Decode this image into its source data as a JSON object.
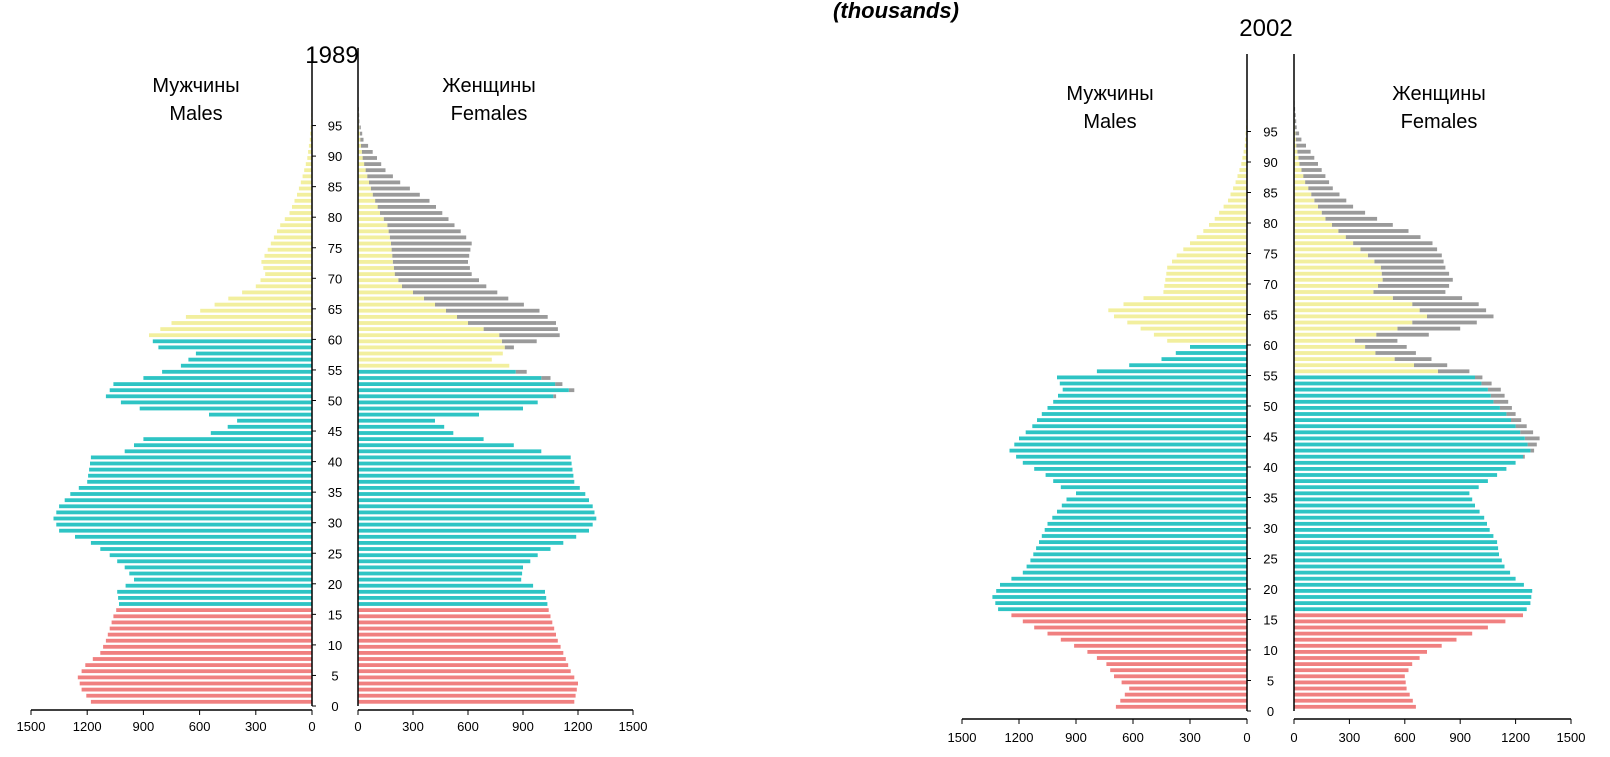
{
  "header": {
    "units": "(thousands)"
  },
  "colors": {
    "children": "#f08080",
    "working": "#2ec4c4",
    "elderly": "#f2ef9e",
    "excess": "#9a9a9a"
  },
  "chart_data": [
    {
      "type": "bar",
      "title": "1989",
      "males_label_ru": "Мужчины",
      "males_label_en": "Males",
      "females_label_ru": "Женщины",
      "females_label_en": "Females",
      "age_ticks": [
        "0",
        "5",
        "10",
        "15",
        "20",
        "25",
        "30",
        "35",
        "40",
        "45",
        "50",
        "55",
        "60",
        "65",
        "70",
        "75",
        "80",
        "85",
        "90",
        "95"
      ],
      "x_ticks_left": [
        "1500",
        "1200",
        "900",
        "600",
        "300",
        "0"
      ],
      "x_ticks_right": [
        "0",
        "300",
        "600",
        "900",
        "1200",
        "1500"
      ],
      "xlim": [
        0,
        1500
      ],
      "age_range": [
        0,
        100
      ],
      "children_upto": 15,
      "working_upto_males": 59,
      "working_upto_females": 54,
      "male_profile": [
        [
          0,
          1180
        ],
        [
          2,
          1230
        ],
        [
          4,
          1250
        ],
        [
          6,
          1210
        ],
        [
          8,
          1130
        ],
        [
          10,
          1100
        ],
        [
          12,
          1080
        ],
        [
          14,
          1060
        ],
        [
          16,
          1030
        ],
        [
          18,
          1040
        ],
        [
          20,
          950
        ],
        [
          22,
          1000
        ],
        [
          24,
          1080
        ],
        [
          26,
          1180
        ],
        [
          28,
          1350
        ],
        [
          30,
          1380
        ],
        [
          32,
          1350
        ],
        [
          34,
          1290
        ],
        [
          36,
          1200
        ],
        [
          38,
          1190
        ],
        [
          40,
          1180
        ],
        [
          41,
          1000
        ],
        [
          43,
          900
        ],
        [
          44,
          540
        ],
        [
          45,
          450
        ],
        [
          46,
          400
        ],
        [
          47,
          550
        ],
        [
          48,
          920
        ],
        [
          49,
          1020
        ],
        [
          50,
          1100
        ],
        [
          52,
          1060
        ],
        [
          53,
          900
        ],
        [
          55,
          700
        ],
        [
          57,
          620
        ],
        [
          58,
          820
        ],
        [
          59,
          850
        ],
        [
          60,
          870
        ],
        [
          62,
          750
        ],
        [
          65,
          520
        ],
        [
          68,
          300
        ],
        [
          70,
          250
        ],
        [
          72,
          270
        ],
        [
          75,
          220
        ],
        [
          78,
          170
        ],
        [
          80,
          120
        ],
        [
          83,
          80
        ],
        [
          86,
          50
        ],
        [
          89,
          25
        ],
        [
          92,
          12
        ],
        [
          95,
          5
        ],
        [
          99,
          1
        ]
      ],
      "female_profile": [
        [
          0,
          1180
        ],
        [
          3,
          1200
        ],
        [
          5,
          1160
        ],
        [
          8,
          1120
        ],
        [
          10,
          1090
        ],
        [
          13,
          1060
        ],
        [
          15,
          1040
        ],
        [
          18,
          1020
        ],
        [
          20,
          890
        ],
        [
          22,
          900
        ],
        [
          24,
          980
        ],
        [
          26,
          1120
        ],
        [
          28,
          1260
        ],
        [
          30,
          1300
        ],
        [
          32,
          1280
        ],
        [
          34,
          1240
        ],
        [
          36,
          1180
        ],
        [
          38,
          1170
        ],
        [
          40,
          1160
        ],
        [
          41,
          1000
        ],
        [
          42,
          850
        ],
        [
          44,
          520
        ],
        [
          46,
          420
        ],
        [
          48,
          900
        ],
        [
          49,
          980
        ],
        [
          51,
          1180
        ],
        [
          53,
          1050
        ],
        [
          54,
          920
        ],
        [
          56,
          730
        ],
        [
          58,
          850
        ],
        [
          60,
          1100
        ],
        [
          62,
          1080
        ],
        [
          64,
          990
        ],
        [
          66,
          820
        ],
        [
          68,
          700
        ],
        [
          70,
          620
        ],
        [
          72,
          600
        ],
        [
          75,
          620
        ],
        [
          77,
          560
        ],
        [
          80,
          460
        ],
        [
          82,
          390
        ],
        [
          85,
          230
        ],
        [
          87,
          150
        ],
        [
          90,
          80
        ],
        [
          92,
          30
        ],
        [
          95,
          8
        ],
        [
          99,
          2
        ]
      ],
      "female_base_profile": [
        [
          0,
          1180
        ],
        [
          3,
          1200
        ],
        [
          5,
          1160
        ],
        [
          8,
          1120
        ],
        [
          10,
          1090
        ],
        [
          13,
          1060
        ],
        [
          15,
          1040
        ],
        [
          18,
          1020
        ],
        [
          20,
          890
        ],
        [
          22,
          900
        ],
        [
          24,
          980
        ],
        [
          26,
          1120
        ],
        [
          28,
          1260
        ],
        [
          30,
          1300
        ],
        [
          32,
          1280
        ],
        [
          34,
          1240
        ],
        [
          36,
          1180
        ],
        [
          38,
          1170
        ],
        [
          40,
          1160
        ],
        [
          41,
          1000
        ],
        [
          42,
          850
        ],
        [
          44,
          520
        ],
        [
          46,
          420
        ],
        [
          48,
          900
        ],
        [
          49,
          980
        ],
        [
          51,
          1150
        ],
        [
          53,
          1000
        ],
        [
          54,
          860
        ],
        [
          55,
          850
        ],
        [
          58,
          800
        ],
        [
          60,
          770
        ],
        [
          62,
          600
        ],
        [
          65,
          420
        ],
        [
          68,
          240
        ],
        [
          70,
          200
        ],
        [
          72,
          190
        ],
        [
          75,
          180
        ],
        [
          78,
          160
        ],
        [
          80,
          120
        ],
        [
          83,
          80
        ],
        [
          86,
          50
        ],
        [
          89,
          25
        ],
        [
          92,
          12
        ],
        [
          95,
          5
        ],
        [
          99,
          1
        ]
      ]
    },
    {
      "type": "bar",
      "title": "2002",
      "males_label_ru": "Мужчины",
      "males_label_en": "Males",
      "females_label_ru": "Женщины",
      "females_label_en": "Females",
      "age_ticks": [
        "0",
        "5",
        "10",
        "15",
        "20",
        "25",
        "30",
        "35",
        "40",
        "45",
        "50",
        "55",
        "60",
        "65",
        "70",
        "75",
        "80",
        "85",
        "90",
        "95"
      ],
      "x_ticks_left": [
        "1500",
        "1200",
        "900",
        "600",
        "300",
        "0"
      ],
      "x_ticks_right": [
        "0",
        "300",
        "600",
        "900",
        "1200",
        "1500"
      ],
      "xlim": [
        0,
        1500
      ],
      "age_range": [
        0,
        100
      ],
      "children_upto": 15,
      "working_upto_males": 59,
      "working_upto_females": 54,
      "male_profile": [
        [
          0,
          690
        ],
        [
          3,
          620
        ],
        [
          5,
          700
        ],
        [
          7,
          740
        ],
        [
          9,
          840
        ],
        [
          11,
          980
        ],
        [
          13,
          1120
        ],
        [
          15,
          1240
        ],
        [
          16,
          1310
        ],
        [
          18,
          1340
        ],
        [
          20,
          1300
        ],
        [
          22,
          1180
        ],
        [
          24,
          1140
        ],
        [
          26,
          1110
        ],
        [
          28,
          1080
        ],
        [
          30,
          1050
        ],
        [
          32,
          1000
        ],
        [
          34,
          950
        ],
        [
          35,
          900
        ],
        [
          36,
          980
        ],
        [
          38,
          1060
        ],
        [
          40,
          1180
        ],
        [
          42,
          1250
        ],
        [
          44,
          1200
        ],
        [
          46,
          1130
        ],
        [
          48,
          1080
        ],
        [
          50,
          1020
        ],
        [
          52,
          970
        ],
        [
          54,
          1000
        ],
        [
          55,
          790
        ],
        [
          57,
          450
        ],
        [
          59,
          300
        ],
        [
          60,
          420
        ],
        [
          62,
          560
        ],
        [
          64,
          700
        ],
        [
          65,
          730
        ],
        [
          66,
          650
        ],
        [
          68,
          440
        ],
        [
          70,
          430
        ],
        [
          72,
          420
        ],
        [
          74,
          370
        ],
        [
          76,
          300
        ],
        [
          78,
          230
        ],
        [
          80,
          170
        ],
        [
          83,
          100
        ],
        [
          86,
          60
        ],
        [
          89,
          30
        ],
        [
          92,
          12
        ],
        [
          95,
          5
        ],
        [
          99,
          1
        ]
      ],
      "female_profile": [
        [
          0,
          660
        ],
        [
          3,
          610
        ],
        [
          5,
          600
        ],
        [
          7,
          640
        ],
        [
          9,
          720
        ],
        [
          11,
          880
        ],
        [
          13,
          1050
        ],
        [
          15,
          1240
        ],
        [
          17,
          1280
        ],
        [
          19,
          1290
        ],
        [
          21,
          1200
        ],
        [
          23,
          1140
        ],
        [
          25,
          1110
        ],
        [
          27,
          1100
        ],
        [
          29,
          1060
        ],
        [
          31,
          1030
        ],
        [
          33,
          980
        ],
        [
          35,
          950
        ],
        [
          36,
          1000
        ],
        [
          38,
          1100
        ],
        [
          40,
          1200
        ],
        [
          42,
          1300
        ],
        [
          44,
          1330
        ],
        [
          46,
          1260
        ],
        [
          48,
          1200
        ],
        [
          50,
          1160
        ],
        [
          52,
          1120
        ],
        [
          54,
          1020
        ],
        [
          55,
          950
        ],
        [
          56,
          830
        ],
        [
          58,
          660
        ],
        [
          60,
          560
        ],
        [
          62,
          900
        ],
        [
          64,
          1080
        ],
        [
          66,
          1000
        ],
        [
          68,
          820
        ],
        [
          70,
          860
        ],
        [
          72,
          820
        ],
        [
          74,
          800
        ],
        [
          76,
          750
        ],
        [
          78,
          620
        ],
        [
          80,
          450
        ],
        [
          82,
          320
        ],
        [
          85,
          210
        ],
        [
          88,
          150
        ],
        [
          91,
          90
        ],
        [
          93,
          40
        ],
        [
          95,
          15
        ],
        [
          99,
          3
        ]
      ],
      "female_base_profile": [
        [
          0,
          660
        ],
        [
          3,
          610
        ],
        [
          5,
          600
        ],
        [
          7,
          640
        ],
        [
          9,
          720
        ],
        [
          11,
          880
        ],
        [
          13,
          1050
        ],
        [
          15,
          1240
        ],
        [
          17,
          1280
        ],
        [
          19,
          1290
        ],
        [
          21,
          1200
        ],
        [
          23,
          1140
        ],
        [
          25,
          1110
        ],
        [
          27,
          1100
        ],
        [
          29,
          1060
        ],
        [
          31,
          1030
        ],
        [
          33,
          980
        ],
        [
          35,
          950
        ],
        [
          36,
          1000
        ],
        [
          38,
          1100
        ],
        [
          40,
          1200
        ],
        [
          42,
          1280
        ],
        [
          44,
          1250
        ],
        [
          46,
          1200
        ],
        [
          48,
          1150
        ],
        [
          50,
          1080
        ],
        [
          52,
          1050
        ],
        [
          54,
          980
        ],
        [
          55,
          780
        ],
        [
          56,
          650
        ],
        [
          58,
          440
        ],
        [
          60,
          330
        ],
        [
          62,
          560
        ],
        [
          64,
          720
        ],
        [
          66,
          640
        ],
        [
          68,
          430
        ],
        [
          70,
          480
        ],
        [
          72,
          470
        ],
        [
          74,
          400
        ],
        [
          76,
          320
        ],
        [
          78,
          240
        ],
        [
          80,
          170
        ],
        [
          83,
          110
        ],
        [
          86,
          60
        ],
        [
          89,
          30
        ],
        [
          92,
          12
        ],
        [
          95,
          5
        ],
        [
          99,
          1
        ]
      ]
    }
  ]
}
